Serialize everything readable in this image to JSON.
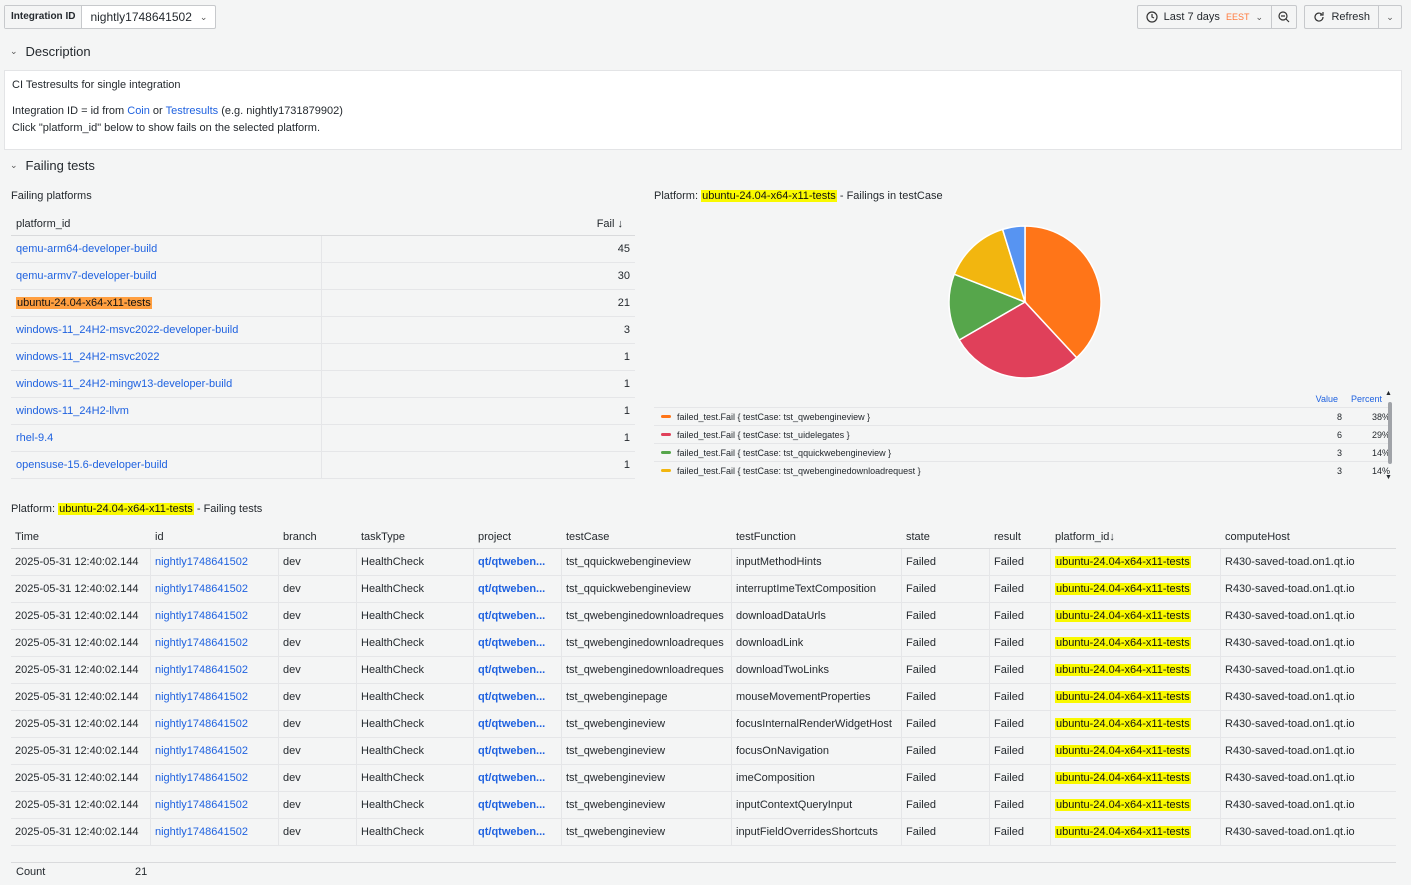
{
  "topbar": {
    "var_label": "Integration ID",
    "var_value": "nightly1748641502",
    "time_range": "Last 7 days",
    "timezone": "EEST",
    "refresh_label": "Refresh"
  },
  "description": {
    "row_title": "Description",
    "line1": "CI Testresults for single integration",
    "line2_prefix": "Integration ID = id from ",
    "link_coin": "Coin",
    "line2_or": " or ",
    "link_testresults": "Testresults",
    "line2_suffix": " (e.g. nightly1731879902)",
    "line3": "Click \"platform_id\" below to show fails on the selected platform."
  },
  "failing": {
    "row_title": "Failing tests",
    "platforms_title": "Failing platforms",
    "col_platform": "platform_id",
    "col_fail": "Fail",
    "platforms": [
      {
        "name": "qemu-arm64-developer-build",
        "fail": "45"
      },
      {
        "name": "qemu-armv7-developer-build",
        "fail": "30"
      },
      {
        "name": "ubuntu-24.04-x64-x11-tests",
        "fail": "21"
      },
      {
        "name": "windows-11_24H2-msvc2022-developer-build",
        "fail": "3"
      },
      {
        "name": "windows-11_24H2-msvc2022",
        "fail": "1"
      },
      {
        "name": "windows-11_24H2-mingw13-developer-build",
        "fail": "1"
      },
      {
        "name": "windows-11_24H2-llvm",
        "fail": "1"
      },
      {
        "name": "rhel-9.4",
        "fail": "1"
      },
      {
        "name": "opensuse-15.6-developer-build",
        "fail": "1"
      }
    ],
    "pie_title_prefix": "Platform: ",
    "pie_title_platform": "ubuntu-24.04-x64-x11-tests",
    "pie_title_suffix": " - Failings in testCase",
    "legend_value_header": "Value",
    "legend_percent_header": "Percent",
    "legend": [
      {
        "name": "failed_test.Fail { testCase: tst_qwebengineview }",
        "value": "8",
        "percent": "38%",
        "color": "#ff7518"
      },
      {
        "name": "failed_test.Fail { testCase: tst_uidelegates }",
        "value": "6",
        "percent": "29%",
        "color": "#e0405a"
      },
      {
        "name": "failed_test.Fail { testCase: tst_qquickwebengineview }",
        "value": "3",
        "percent": "14%",
        "color": "#56a64b"
      },
      {
        "name": "failed_test.Fail { testCase: tst_qwebenginedownloadrequest }",
        "value": "3",
        "percent": "14%",
        "color": "#f2b60f"
      }
    ],
    "tests_title_prefix": "Platform: ",
    "tests_title_platform": "ubuntu-24.04-x64-x11-tests",
    "tests_title_suffix": " - Failing tests",
    "columns": [
      "Time",
      "id",
      "branch",
      "taskType",
      "project",
      "testCase",
      "testFunction",
      "state",
      "result",
      "platform_id",
      "computeHost"
    ],
    "rows": [
      [
        "2025-05-31 12:40:02.144",
        "nightly1748641502",
        "dev",
        "HealthCheck",
        "qt/qtweben...",
        "tst_qquickwebengineview",
        "inputMethodHints",
        "Failed",
        "Failed",
        "ubuntu-24.04-x64-x11-tests",
        "R430-saved-toad.on1.qt.io"
      ],
      [
        "2025-05-31 12:40:02.144",
        "nightly1748641502",
        "dev",
        "HealthCheck",
        "qt/qtweben...",
        "tst_qquickwebengineview",
        "interruptImeTextComposition",
        "Failed",
        "Failed",
        "ubuntu-24.04-x64-x11-tests",
        "R430-saved-toad.on1.qt.io"
      ],
      [
        "2025-05-31 12:40:02.144",
        "nightly1748641502",
        "dev",
        "HealthCheck",
        "qt/qtweben...",
        "tst_qwebenginedownloadreques",
        "downloadDataUrls",
        "Failed",
        "Failed",
        "ubuntu-24.04-x64-x11-tests",
        "R430-saved-toad.on1.qt.io"
      ],
      [
        "2025-05-31 12:40:02.144",
        "nightly1748641502",
        "dev",
        "HealthCheck",
        "qt/qtweben...",
        "tst_qwebenginedownloadreques",
        "downloadLink",
        "Failed",
        "Failed",
        "ubuntu-24.04-x64-x11-tests",
        "R430-saved-toad.on1.qt.io"
      ],
      [
        "2025-05-31 12:40:02.144",
        "nightly1748641502",
        "dev",
        "HealthCheck",
        "qt/qtweben...",
        "tst_qwebenginedownloadreques",
        "downloadTwoLinks",
        "Failed",
        "Failed",
        "ubuntu-24.04-x64-x11-tests",
        "R430-saved-toad.on1.qt.io"
      ],
      [
        "2025-05-31 12:40:02.144",
        "nightly1748641502",
        "dev",
        "HealthCheck",
        "qt/qtweben...",
        "tst_qwebenginepage",
        "mouseMovementProperties",
        "Failed",
        "Failed",
        "ubuntu-24.04-x64-x11-tests",
        "R430-saved-toad.on1.qt.io"
      ],
      [
        "2025-05-31 12:40:02.144",
        "nightly1748641502",
        "dev",
        "HealthCheck",
        "qt/qtweben...",
        "tst_qwebengineview",
        "focusInternalRenderWidgetHost",
        "Failed",
        "Failed",
        "ubuntu-24.04-x64-x11-tests",
        "R430-saved-toad.on1.qt.io"
      ],
      [
        "2025-05-31 12:40:02.144",
        "nightly1748641502",
        "dev",
        "HealthCheck",
        "qt/qtweben...",
        "tst_qwebengineview",
        "focusOnNavigation",
        "Failed",
        "Failed",
        "ubuntu-24.04-x64-x11-tests",
        "R430-saved-toad.on1.qt.io"
      ],
      [
        "2025-05-31 12:40:02.144",
        "nightly1748641502",
        "dev",
        "HealthCheck",
        "qt/qtweben...",
        "tst_qwebengineview",
        "imeComposition",
        "Failed",
        "Failed",
        "ubuntu-24.04-x64-x11-tests",
        "R430-saved-toad.on1.qt.io"
      ],
      [
        "2025-05-31 12:40:02.144",
        "nightly1748641502",
        "dev",
        "HealthCheck",
        "qt/qtweben...",
        "tst_qwebengineview",
        "inputContextQueryInput",
        "Failed",
        "Failed",
        "ubuntu-24.04-x64-x11-tests",
        "R430-saved-toad.on1.qt.io"
      ],
      [
        "2025-05-31 12:40:02.144",
        "nightly1748641502",
        "dev",
        "HealthCheck",
        "qt/qtweben...",
        "tst_qwebengineview",
        "inputFieldOverridesShortcuts",
        "Failed",
        "Failed",
        "ubuntu-24.04-x64-x11-tests",
        "R430-saved-toad.on1.qt.io"
      ]
    ],
    "count_label": "Count",
    "count_value": "21"
  },
  "chart_data": {
    "type": "pie",
    "title": "Platform: ubuntu-24.04-x64-x11-tests - Failings in testCase",
    "labels": [
      "failed_test.Fail { testCase: tst_qwebengineview }",
      "failed_test.Fail { testCase: tst_uidelegates }",
      "failed_test.Fail { testCase: tst_qquickwebengineview }",
      "failed_test.Fail { testCase: tst_qwebenginedownloadrequest }",
      ""
    ],
    "values": [
      8,
      6,
      3,
      3,
      1
    ],
    "colors": [
      "#ff7518",
      "#e0405a",
      "#56a64b",
      "#f2b60f",
      "#5794f2"
    ],
    "legend": "bottom"
  }
}
